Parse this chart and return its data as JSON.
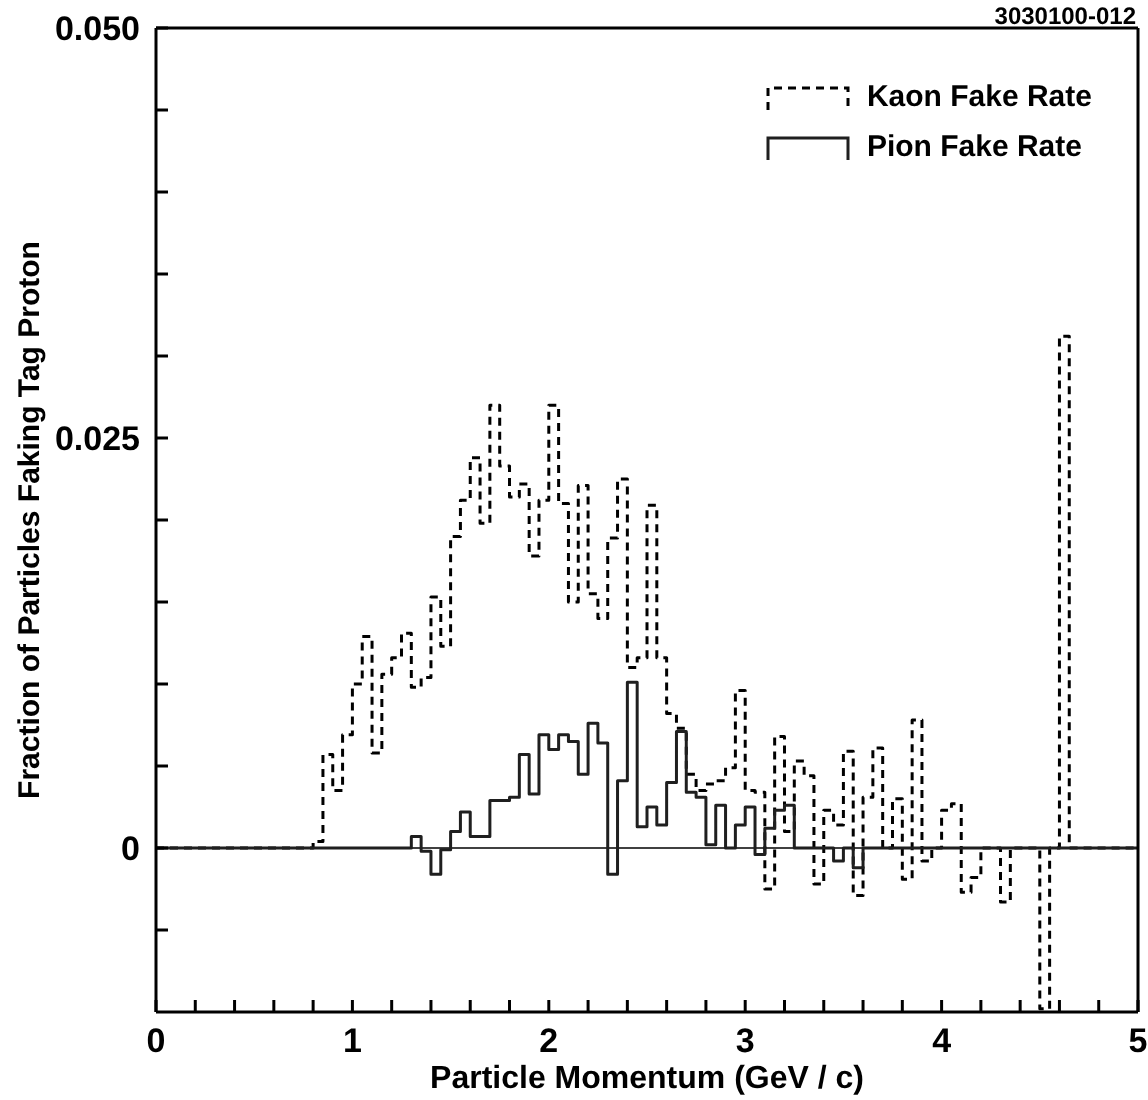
{
  "chart_data": {
    "type": "histogram",
    "xlabel": "Particle Momentum (GeV / c)",
    "ylabel": "Fraction of Particles Faking Tag Proton",
    "annotations": [
      "3030100-012"
    ],
    "bins": [
      0,
      0.05,
      0.1,
      0.15,
      0.2,
      0.25,
      0.3,
      0.35,
      0.4,
      0.45,
      0.5,
      0.55,
      0.6,
      0.65,
      0.7,
      0.75,
      0.8,
      0.85,
      0.9,
      0.95,
      1,
      1.05,
      1.1,
      1.15,
      1.2,
      1.25,
      1.3,
      1.35,
      1.4,
      1.45,
      1.5,
      1.55,
      1.6,
      1.65,
      1.7,
      1.75,
      1.8,
      1.85,
      1.9,
      1.95,
      2,
      2.05,
      2.1,
      2.15,
      2.2,
      2.25,
      2.3,
      2.35,
      2.4,
      2.45,
      2.5,
      2.55,
      2.6,
      2.65,
      2.7,
      2.75,
      2.8,
      2.85,
      2.9,
      2.95,
      3,
      3.05,
      3.1,
      3.15,
      3.2,
      3.25,
      3.3,
      3.35,
      3.4,
      3.45,
      3.5,
      3.55,
      3.6,
      3.65,
      3.7,
      3.75,
      3.8,
      3.85,
      3.9,
      3.95,
      4,
      4.05,
      4.1,
      4.15,
      4.2,
      4.25,
      4.3,
      4.35,
      4.4,
      4.45,
      4.5,
      4.55,
      4.6,
      4.65,
      4.7,
      4.75,
      4.8,
      4.85,
      4.9,
      4.95,
      5
    ],
    "series": [
      {
        "name": "Kaon Fake Rate",
        "color": "#000000",
        "line_style": "dashed",
        "values": [
          0,
          0,
          0,
          0,
          0,
          0,
          0,
          0,
          0,
          0,
          0,
          0,
          0,
          0,
          0,
          0,
          0.0004,
          0.0057,
          0.0035,
          0.0069,
          0.01,
          0.0129,
          0.0058,
          0.0106,
          0.0116,
          0.0131,
          0.0098,
          0.0104,
          0.0153,
          0.0123,
          0.019,
          0.0212,
          0.0238,
          0.0198,
          0.027,
          0.0233,
          0.0214,
          0.0222,
          0.0178,
          0.0212,
          0.027,
          0.021,
          0.015,
          0.0221,
          0.0155,
          0.014,
          0.0189,
          0.0225,
          0.011,
          0.0116,
          0.0209,
          0.0116,
          0.0082,
          0.0073,
          0.0045,
          0.0035,
          0.0039,
          0.0041,
          0.0049,
          0.0096,
          0.0035,
          0.0034,
          -0.0025,
          0.0068,
          0.001,
          0.0053,
          0.0044,
          -0.0022,
          0.0023,
          0.0014,
          0.0059,
          -0.0029,
          0.0031,
          0.0061,
          0,
          0.003,
          -0.0019,
          0.0078,
          -0.0008,
          0,
          0.0023,
          0.0027,
          -0.0027,
          -0.0018,
          0,
          0,
          -0.0033,
          0,
          0,
          0,
          -0.0098,
          0,
          0.0312,
          0,
          0,
          0,
          0,
          0,
          0,
          0
        ]
      },
      {
        "name": "Pion Fake Rate",
        "color": "#1f1f1f",
        "line_style": "solid",
        "values": [
          0,
          0,
          0,
          0,
          0,
          0,
          0,
          0,
          0,
          0,
          0,
          0,
          0,
          0,
          0,
          0,
          0,
          0,
          0,
          0,
          0,
          0,
          0,
          0,
          0,
          0,
          0.0007,
          -0.0002,
          -0.0016,
          -0.0001,
          0.001,
          0.0022,
          0.0007,
          0.0007,
          0.0029,
          0.0029,
          0.0031,
          0.0057,
          0.0033,
          0.0069,
          0.006,
          0.0069,
          0.0065,
          0.0045,
          0.0076,
          0.0064,
          -0.0016,
          0.0041,
          0.0101,
          0.0013,
          0.0025,
          0.0014,
          0.004,
          0.0071,
          0.0034,
          0.0031,
          0.0002,
          0.0026,
          0,
          0.0014,
          0.0025,
          -0.0004,
          0.0012,
          0.0023,
          0.0026,
          0,
          0,
          0,
          0,
          -0.0008,
          0,
          -0.0012,
          0,
          0,
          0,
          0,
          0,
          0,
          0,
          0,
          0,
          0,
          0,
          0,
          0,
          0,
          0,
          0,
          0,
          0,
          0,
          0,
          0,
          0,
          0,
          0,
          0,
          0,
          0,
          0
        ]
      }
    ],
    "xlim": [
      0,
      5
    ],
    "xticks": [
      0,
      {
        "value": 0.2,
        "label": null
      },
      {
        "value": 0.4,
        "label": null
      },
      {
        "value": 0.6,
        "label": null
      },
      {
        "value": 0.8,
        "label": null
      },
      1,
      {
        "value": 1.2,
        "label": null
      },
      {
        "value": 1.4,
        "label": null
      },
      {
        "value": 1.6,
        "label": null
      },
      {
        "value": 1.8,
        "label": null
      },
      2,
      {
        "value": 2.2,
        "label": null
      },
      {
        "value": 2.4,
        "label": null
      },
      {
        "value": 2.6,
        "label": null
      },
      {
        "value": 2.8,
        "label": null
      },
      3,
      {
        "value": 3.2,
        "label": null
      },
      {
        "value": 3.4,
        "label": null
      },
      {
        "value": 3.6,
        "label": null
      },
      {
        "value": 3.8,
        "label": null
      },
      4,
      {
        "value": 4.2,
        "label": null
      },
      {
        "value": 4.4,
        "label": null
      },
      {
        "value": 4.6,
        "label": null
      },
      {
        "value": 4.8,
        "label": null
      },
      5
    ],
    "ylim": [
      -0.01,
      0.05
    ],
    "yticks": [
      {
        "value": -0.005,
        "label": null
      },
      {
        "value": 0,
        "label": "0"
      },
      {
        "value": 0.005,
        "label": null
      },
      {
        "value": 0.01,
        "label": null
      },
      {
        "value": 0.015,
        "label": null
      },
      {
        "value": 0.02,
        "label": null
      },
      0.025,
      {
        "value": 0.03,
        "label": null
      },
      {
        "value": 0.035,
        "label": null
      },
      {
        "value": 0.04,
        "label": null
      },
      {
        "value": 0.045,
        "label": null
      },
      {
        "value": 0.05,
        "label": "0.050"
      }
    ],
    "ref_lines": [
      {
        "axis": "y",
        "value": 0,
        "color": "#000000"
      }
    ],
    "legend": "top right"
  }
}
